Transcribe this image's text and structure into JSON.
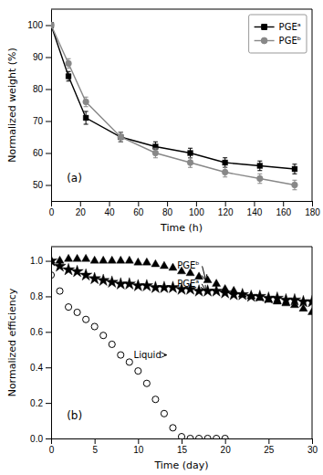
{
  "chart_data": [
    {
      "type": "line",
      "title": "(a)",
      "x_label": "Time (h)",
      "y_label": "Normalized weight (%)",
      "xlim": [
        0,
        180
      ],
      "ylim": [
        45,
        105
      ],
      "xticks": [
        0,
        20,
        40,
        60,
        80,
        100,
        120,
        140,
        160,
        180
      ],
      "yticks": [
        50,
        60,
        70,
        80,
        90,
        100
      ],
      "legend": "upper right",
      "series": [
        {
          "name": "PGEᵃ",
          "color": "#000000",
          "marker": "square",
          "x": [
            0,
            12,
            24,
            48,
            72,
            96,
            120,
            144,
            168
          ],
          "values": [
            100,
            84,
            71,
            65,
            62,
            60,
            57,
            56,
            55
          ],
          "errors": [
            0,
            1.5,
            2.0,
            1.5,
            1.5,
            1.5,
            1.5,
            1.5,
            1.5
          ]
        },
        {
          "name": "PGEᵇ",
          "color": "#888888",
          "marker": "circle",
          "x": [
            0,
            12,
            24,
            48,
            72,
            96,
            120,
            144,
            168
          ],
          "values": [
            100,
            88,
            76,
            65,
            60,
            57,
            54,
            52,
            50
          ],
          "errors": [
            0,
            1.5,
            1.5,
            1.5,
            1.5,
            1.5,
            1.5,
            1.5,
            1.5
          ]
        }
      ]
    },
    {
      "type": "scatter",
      "title": "(b)",
      "x_label": "Time (day)",
      "y_label": "Normalized efficiency",
      "xlim": [
        0,
        30
      ],
      "ylim": [
        0.0,
        1.08
      ],
      "xticks": [
        0,
        5,
        10,
        15,
        20,
        25,
        30
      ],
      "yticks": [
        {
          "value": 0.0,
          "label": "0.0"
        },
        0.2,
        0.4,
        0.6,
        0.8,
        {
          "value": 1.0,
          "label": "1.0"
        }
      ],
      "series": [
        {
          "name": "PGEᵇ",
          "color": "#000000",
          "marker": "triangle",
          "x": [
            0,
            1,
            2,
            3,
            4,
            5,
            6,
            7,
            8,
            9,
            10,
            11,
            12,
            13,
            14,
            15,
            16,
            17,
            18,
            19,
            20,
            21,
            22,
            23,
            24,
            25,
            26,
            27,
            28,
            29,
            30
          ],
          "values": [
            1.0,
            1.0,
            1.01,
            1.01,
            1.01,
            1.0,
            1.0,
            1.0,
            1.0,
            1.0,
            0.99,
            0.99,
            0.98,
            0.97,
            0.96,
            0.94,
            0.93,
            0.91,
            0.89,
            0.87,
            0.84,
            0.83,
            0.81,
            0.8,
            0.79,
            0.78,
            0.77,
            0.76,
            0.75,
            0.73,
            0.71
          ]
        },
        {
          "name": "PGEᵃ",
          "color": "#000000",
          "marker": "star",
          "x": [
            0,
            1,
            2,
            3,
            4,
            5,
            6,
            7,
            8,
            9,
            10,
            11,
            12,
            13,
            14,
            15,
            16,
            17,
            18,
            19,
            20,
            21,
            22,
            23,
            24,
            25,
            26,
            27,
            28,
            29,
            30
          ],
          "values": [
            1.0,
            0.97,
            0.95,
            0.94,
            0.92,
            0.9,
            0.89,
            0.88,
            0.87,
            0.87,
            0.86,
            0.86,
            0.85,
            0.85,
            0.85,
            0.84,
            0.84,
            0.83,
            0.83,
            0.83,
            0.82,
            0.81,
            0.81,
            0.8,
            0.8,
            0.79,
            0.79,
            0.78,
            0.78,
            0.77,
            0.77
          ]
        },
        {
          "name": "Liquid",
          "color": "#000000",
          "marker": "open-circle",
          "x": [
            0,
            1,
            2,
            3,
            4,
            5,
            6,
            7,
            8,
            9,
            10,
            11,
            12,
            13,
            14,
            15,
            16,
            17,
            18,
            19,
            20
          ],
          "values": [
            0.92,
            0.83,
            0.74,
            0.71,
            0.67,
            0.63,
            0.58,
            0.53,
            0.47,
            0.43,
            0.38,
            0.31,
            0.22,
            0.14,
            0.06,
            0.01,
            0.0,
            0.0,
            0.0,
            0.0,
            0.0
          ]
        }
      ],
      "annotations": [
        {
          "text": "PGEᵇ",
          "x": 14.5,
          "y": 0.97,
          "arrow_x": 18,
          "arrow_y": 0.89
        },
        {
          "text": "PGEᵃ",
          "x": 14.5,
          "y": 0.87,
          "arrow_x": 18,
          "arrow_y": 0.83
        },
        {
          "text": "Liquid",
          "x": 9.5,
          "y": 0.47,
          "arrow_x": 13.5,
          "arrow_y": 0.47
        }
      ]
    }
  ]
}
